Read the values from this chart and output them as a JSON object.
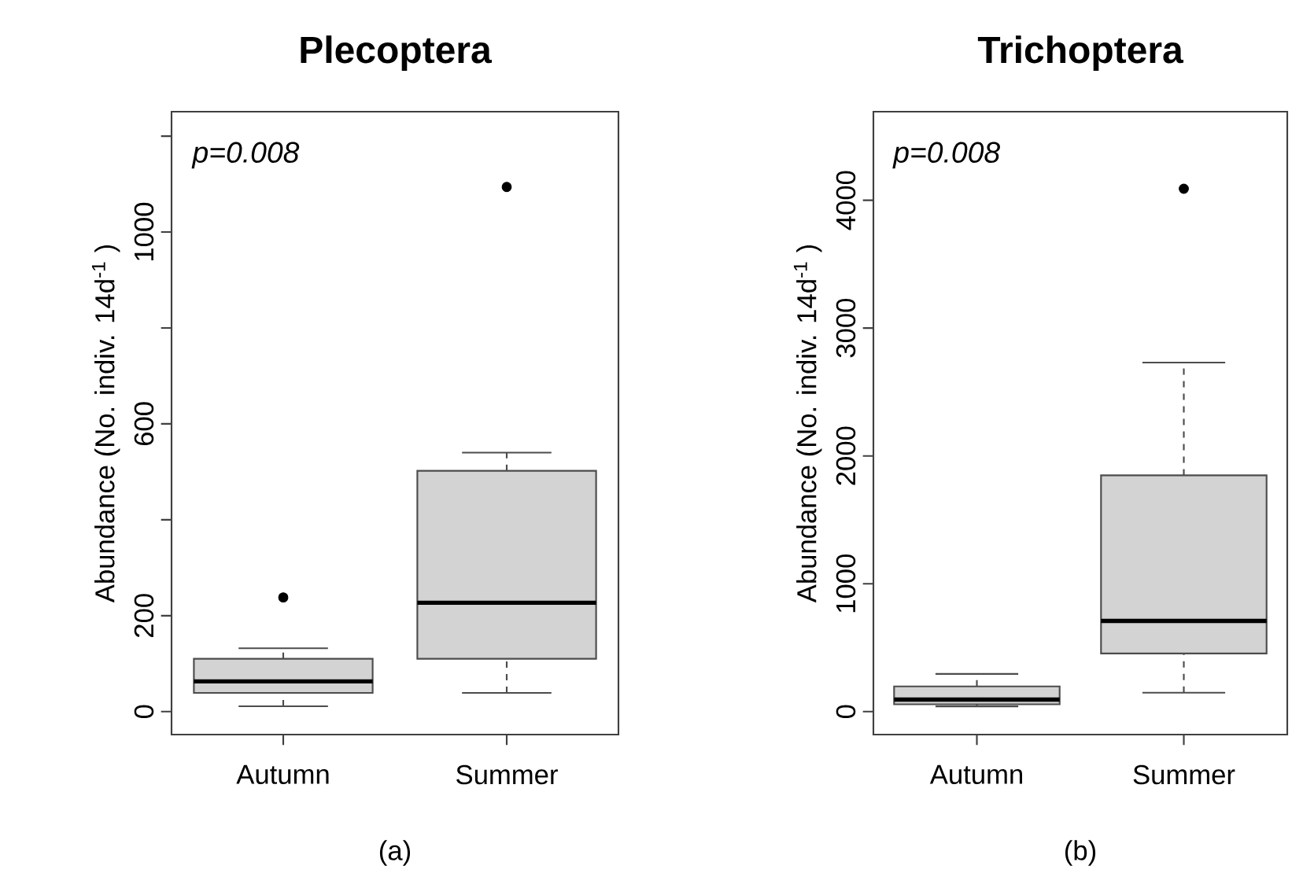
{
  "chart_data": [
    {
      "type": "box",
      "title": "Plecoptera",
      "ylabel": "Abundance  (No. indiv. 14d$^{-1}$ )",
      "categories": [
        "Autumn",
        "Summer"
      ],
      "series": [
        {
          "color": "#d3d3d3",
          "boxes": [
            {
              "low": 11,
              "q1": 39,
              "median": 63,
              "q3": 110,
              "high": 132,
              "outliers": [
                238
              ]
            },
            {
              "low": 39,
              "q1": 110,
              "median": 227,
              "q3": 502,
              "high": 540,
              "outliers": [
                1094
              ]
            }
          ]
        }
      ],
      "ylim": [
        -48,
        1251
      ],
      "yticks": [
        0,
        200,
        {
          "value": 400,
          "label": null
        },
        600,
        {
          "value": 800,
          "label": null
        },
        1000,
        {
          "value": 1200,
          "label": null
        }
      ],
      "annotations": [
        "p=0.008",
        "(a)"
      ]
    },
    {
      "type": "box",
      "title": "Trichoptera",
      "ylabel": "Abundance  (No. indiv. 14d$^{-1}$ )",
      "categories": [
        "Autumn",
        "Summer"
      ],
      "series": [
        {
          "color": "#d3d3d3",
          "boxes": [
            {
              "low": 41,
              "q1": 57,
              "median": 94,
              "q3": 197,
              "high": 295
            },
            {
              "low": 148,
              "q1": 455,
              "median": 709,
              "q3": 1848,
              "high": 2730,
              "outliers": [
                4090
              ]
            }
          ]
        }
      ],
      "ylim": [
        -180,
        4693
      ],
      "yticks": [
        0,
        1000,
        2000,
        3000,
        4000
      ],
      "annotations": [
        "p=0.008",
        "(b)"
      ]
    }
  ]
}
